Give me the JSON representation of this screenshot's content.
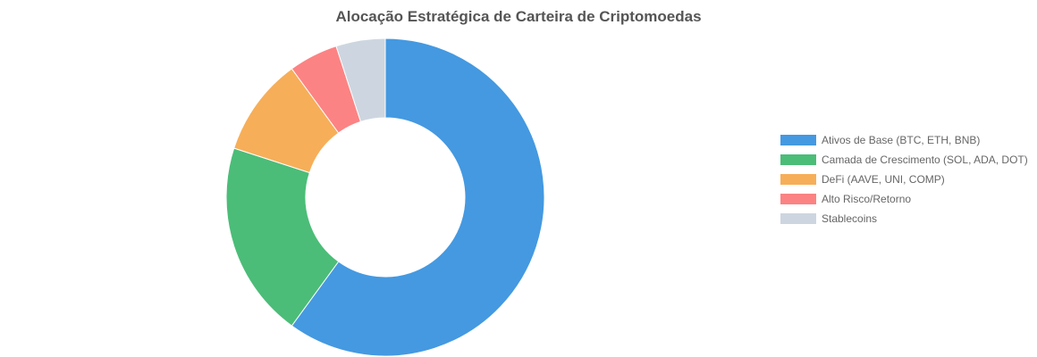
{
  "chart_data": {
    "type": "doughnut",
    "title": "Alocação Estratégica de Carteira de Criptomoedas",
    "categories": [
      "Ativos de Base (BTC, ETH, BNB)",
      "Camada de Crescimento (SOL, ADA, DOT)",
      "DeFi (AAVE, UNI, COMP)",
      "Alto Risco/Retorno",
      "Stablecoins"
    ],
    "values": [
      60,
      20,
      10,
      5,
      5
    ],
    "colors": [
      "#4499E1",
      "#4BBD78",
      "#F7AE58",
      "#FC8383",
      "#CDD6E0"
    ],
    "legend_position": "right"
  }
}
